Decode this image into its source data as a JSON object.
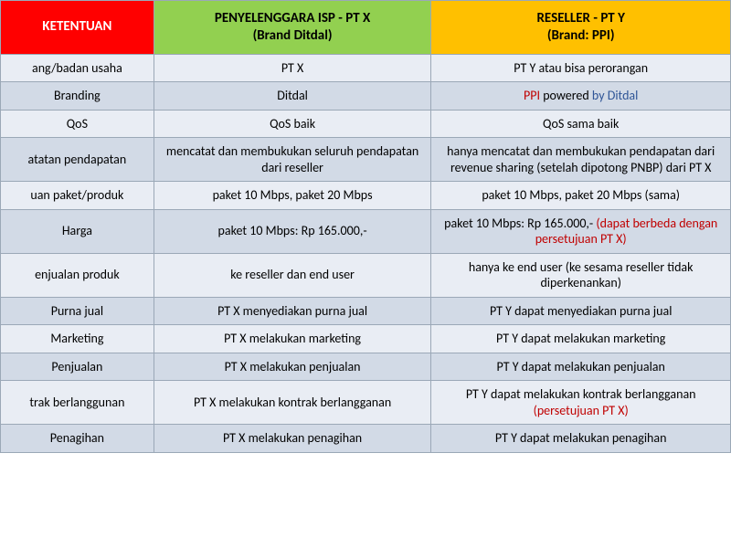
{
  "table": {
    "header": {
      "col1": {
        "text": "KETENTUAN",
        "bg": "#ff0000",
        "fg": "#ffffff"
      },
      "col2": {
        "line1": "PENYELENGGARA ISP - PT X",
        "line2": "(Brand Ditdal)",
        "bg": "#92d050",
        "fg": "#000000"
      },
      "col3": {
        "line1": "RESELLER  - PT Y",
        "line2": "(Brand: PPI)",
        "bg": "#ffc000",
        "fg": "#000000"
      }
    },
    "colors": {
      "bandA": "#e9edf4",
      "bandB": "#d2dae6",
      "border": "#9ba8b7",
      "red": "#c00000",
      "blue": "#2f5597"
    },
    "rows": [
      {
        "ket": "ang/badan usaha",
        "isp": "PT X",
        "res": {
          "plain": "PT Y atau bisa perorangan"
        }
      },
      {
        "ket": "Branding",
        "isp": "Ditdal",
        "res": {
          "branding": {
            "ppi": "PPI",
            "mid": " powered ",
            "by": "by Ditdal"
          }
        }
      },
      {
        "ket": "QoS",
        "isp": "QoS baik",
        "res": {
          "plain": "QoS sama baik"
        }
      },
      {
        "ket": "atatan pendapatan",
        "isp": "mencatat dan membukukan seluruh pendapatan dari reseller",
        "res": {
          "plain": "hanya mencatat dan membukukan pendapatan dari revenue sharing (setelah dipotong PNBP)  dari PT X"
        }
      },
      {
        "ket": "uan paket/produk",
        "isp": "paket 10 Mbps, paket 20 Mbps",
        "res": {
          "plain": "paket 10 Mbps, paket 20 Mbps (sama)"
        }
      },
      {
        "ket": "Harga",
        "isp": "paket 10 Mbps: Rp 165.000,-",
        "res": {
          "mixed": {
            "pre": "paket 10 Mbps: Rp 165.000,- ",
            "red": "(dapat berbeda dengan persetujuan PT X)"
          }
        }
      },
      {
        "ket": "enjualan produk",
        "isp": "ke reseller dan end user",
        "res": {
          "plain": "hanya ke end user (ke sesama reseller tidak diperkenankan)"
        }
      },
      {
        "ket": "Purna jual",
        "isp": "PT X menyediakan purna jual",
        "res": {
          "plain": "PT Y dapat menyediakan purna jual"
        }
      },
      {
        "ket": "Marketing",
        "isp": "PT X melakukan marketing",
        "res": {
          "plain": "PT Y dapat melakukan marketing"
        }
      },
      {
        "ket": "Penjualan",
        "isp": "PT X melakukan penjualan",
        "res": {
          "plain": "PT Y dapat melakukan penjualan"
        }
      },
      {
        "ket": "trak berlanggunan",
        "isp": "PT X melakukan kontrak berlangganan",
        "res": {
          "mixed": {
            "pre": "PT Y dapat melakukan kontrak berlangganan ",
            "red": "(persetujuan PT X)"
          }
        }
      },
      {
        "ket": "Penagihan",
        "isp": "PT X melakukan penagihan",
        "res": {
          "plain": "PT Y dapat melakukan penagihan"
        }
      }
    ]
  }
}
